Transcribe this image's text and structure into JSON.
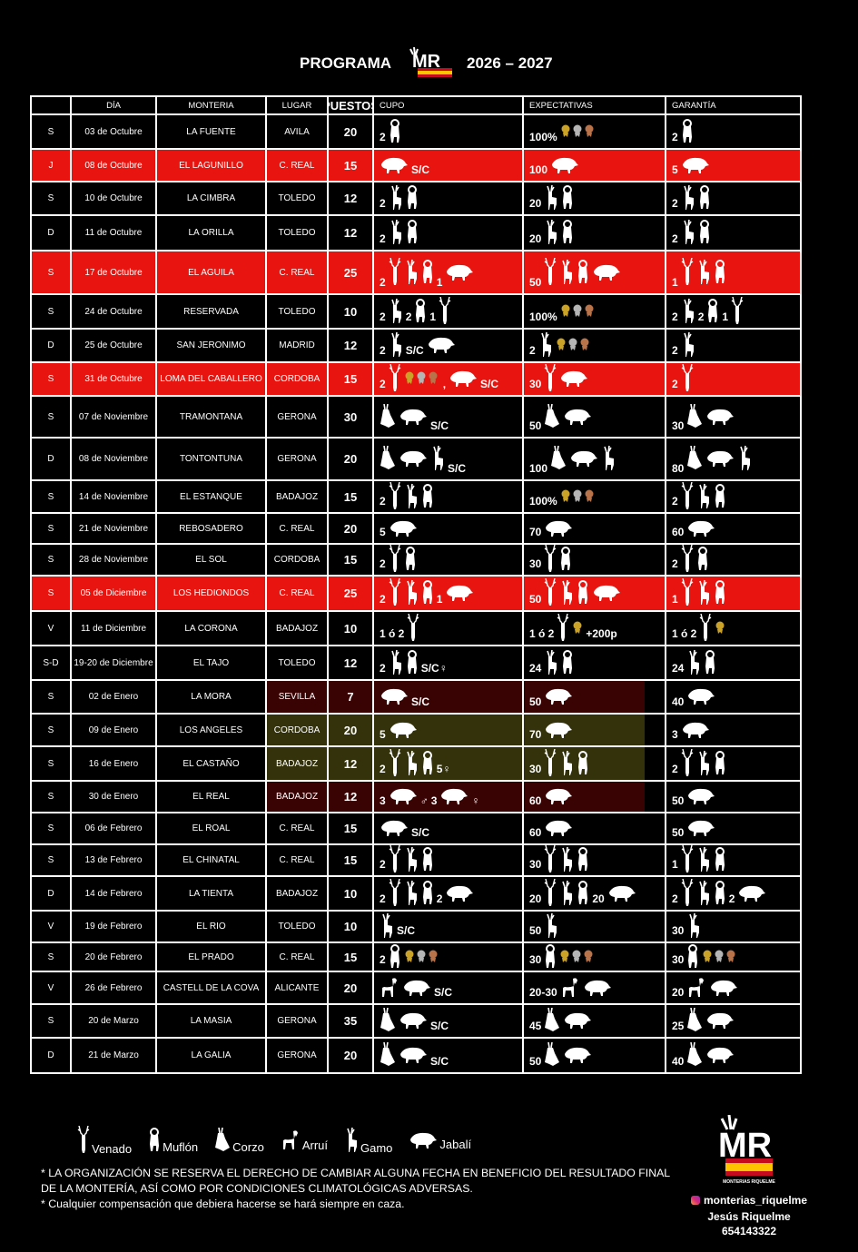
{
  "header": {
    "left": "PROGRAMA",
    "right": "2026 – 2027",
    "logo_text": "MR"
  },
  "columns": [
    "",
    "DÍA",
    "MONTERIA",
    "LUGAR",
    "PUESTOS",
    "CUPO",
    "EXPECTATIVAS",
    "GARANTÍA"
  ],
  "colors": {
    "highlight": "#e8140f",
    "gold": "#c9a227",
    "silver": "#b5b5b5",
    "bronze": "#b8734a"
  },
  "rows": [
    {
      "d": "S",
      "date": "03 de Octubre",
      "name": "LA FUENTE",
      "place": "AVILA",
      "puestos": "20",
      "red": false,
      "cupo": [
        "2",
        "@muflon"
      ],
      "exp": [
        "100%",
        "@medals"
      ],
      "gar": [
        "2",
        "@muflon"
      ]
    },
    {
      "d": "J",
      "date": "08 de Octubre",
      "name": "EL LAGUNILLO",
      "place": "C. REAL",
      "puestos": "15",
      "red": true,
      "cupo": [
        "@jabali",
        "S/C"
      ],
      "exp": [
        "100",
        "@jabali"
      ],
      "gar": [
        "5",
        "@jabali"
      ]
    },
    {
      "d": "S",
      "date": "10 de Octubre",
      "name": "LA CIMBRA",
      "place": "TOLEDO",
      "puestos": "12",
      "red": false,
      "cupo": [
        "2",
        "@gamo",
        "@muflon"
      ],
      "exp": [
        "20",
        "@gamo",
        "@muflon"
      ],
      "gar": [
        "2",
        "@gamo",
        "@muflon"
      ]
    },
    {
      "d": "D",
      "date": "11 de Octubre",
      "name": "LA ORILLA",
      "place": "TOLEDO",
      "puestos": "12",
      "red": false,
      "cupo": [
        "2",
        "@gamo",
        "@muflon"
      ],
      "exp": [
        "20",
        "@gamo",
        "@muflon"
      ],
      "gar": [
        "2",
        "@gamo",
        "@muflon"
      ]
    },
    {
      "d": "S",
      "date": "17 de Octubre",
      "name": "EL AGUILA",
      "place": "C. REAL",
      "puestos": "25",
      "red": true,
      "cupo": [
        "2",
        "@venado",
        "@gamo",
        "@muflon",
        "1",
        "@jabali"
      ],
      "exp": [
        "50",
        "@venado",
        "@gamo",
        "@muflon",
        "@jabali"
      ],
      "gar": [
        "1",
        "@venado",
        "@gamo",
        "@muflon"
      ]
    },
    {
      "d": "S",
      "date": "24 de Octubre",
      "name": "RESERVADA",
      "place": "TOLEDO",
      "puestos": "10",
      "red": false,
      "cupo": [
        "2",
        "@gamo",
        "2",
        "@muflon",
        "1",
        "@venado"
      ],
      "exp": [
        "100%",
        "@medals"
      ],
      "gar": [
        "2",
        "@gamo",
        "2",
        "@muflon",
        "1",
        "@venado"
      ]
    },
    {
      "d": "D",
      "date": "25 de Octubre",
      "name": "SAN JERONIMO",
      "place": "MADRID",
      "puestos": "12",
      "red": false,
      "cupo": [
        "2",
        "@gamo",
        "S/C",
        "@jabali"
      ],
      "exp": [
        "2",
        "@gamo",
        "@medals"
      ],
      "gar": [
        "2",
        "@gamo"
      ]
    },
    {
      "d": "S",
      "date": "31 de Octubre",
      "name": "LOMA DEL CABALLERO",
      "place": "CORDOBA",
      "puestos": "15",
      "red": true,
      "cupo": [
        "2",
        "@venado",
        "@medals",
        ",",
        "@jabali",
        "S/C"
      ],
      "exp": [
        "30",
        "@venado",
        "@jabali"
      ],
      "gar": [
        "2",
        "@venado"
      ]
    },
    {
      "d": "S",
      "date": "07 de Noviembre",
      "name": "TRAMONTANA",
      "place": "GERONA",
      "puestos": "30",
      "red": false,
      "cupo": [
        "@corzo",
        "@jabali",
        "S/C"
      ],
      "exp": [
        "50",
        "@corzo",
        "@jabali"
      ],
      "gar": [
        "30",
        "@corzo",
        "@jabali"
      ]
    },
    {
      "d": "D",
      "date": "08 de Noviembre",
      "name": "TONTONTUNA",
      "place": "GERONA",
      "puestos": "20",
      "red": false,
      "cupo": [
        "@corzo",
        "@jabali",
        "@gamo",
        "S/C"
      ],
      "exp": [
        "100",
        "@corzo",
        "@jabali",
        "@gamo"
      ],
      "gar": [
        "80",
        "@corzo",
        "@jabali",
        "@gamo"
      ]
    },
    {
      "d": "S",
      "date": "14 de Noviembre",
      "name": "EL ESTANQUE",
      "place": "BADAJOZ",
      "puestos": "15",
      "red": false,
      "cupo": [
        "2",
        "@venado",
        "@gamo",
        "@muflon"
      ],
      "exp": [
        "100%",
        "@medals"
      ],
      "gar": [
        "2",
        "@venado",
        "@gamo",
        "@muflon"
      ]
    },
    {
      "d": "S",
      "date": "21 de Noviembre",
      "name": "REBOSADERO",
      "place": "C. REAL",
      "puestos": "20",
      "red": false,
      "cupo": [
        "5",
        "@jabali"
      ],
      "exp": [
        "70",
        "@jabali"
      ],
      "gar": [
        "60",
        "@jabali"
      ]
    },
    {
      "d": "S",
      "date": "28 de Noviembre",
      "name": "EL SOL",
      "place": "CORDOBA",
      "puestos": "15",
      "red": false,
      "cupo": [
        "2",
        "@venado",
        "@muflon"
      ],
      "exp": [
        "30",
        "@venado",
        "@muflon"
      ],
      "gar": [
        "2",
        "@venado",
        "@muflon"
      ]
    },
    {
      "d": "S",
      "date": "05 de Diciembre",
      "name": "LOS HEDIONDOS",
      "place": "C. REAL",
      "puestos": "25",
      "red": true,
      "cupo": [
        "2",
        "@venado",
        "@gamo",
        "@muflon",
        "1",
        "@jabali"
      ],
      "exp": [
        "50",
        "@venado",
        "@gamo",
        "@muflon",
        "@jabali"
      ],
      "gar": [
        "1",
        "@venado",
        "@gamo",
        "@muflon"
      ]
    },
    {
      "d": "V",
      "date": "11 de Diciembre",
      "name": "LA CORONA",
      "place": "BADAJOZ",
      "puestos": "10",
      "red": false,
      "cupo": [
        "1 ó 2",
        "@venado"
      ],
      "exp": [
        "1 ó 2",
        "@venado",
        "@gold",
        "+200p"
      ],
      "gar": [
        "1 ó 2",
        "@venado",
        "@gold"
      ]
    },
    {
      "d": "S-D",
      "date": "19-20 de Diciembre",
      "name": "EL TAJO",
      "place": "TOLEDO",
      "puestos": "12",
      "red": false,
      "cupo": [
        "2",
        "@gamo",
        "@muflon",
        "S/C♀"
      ],
      "exp": [
        "24",
        "@gamo",
        "@muflon"
      ],
      "gar": [
        "24",
        "@gamo",
        "@muflon"
      ]
    },
    {
      "d": "S",
      "date": "02 de Enero",
      "name": "LA MORA",
      "place": "SEVILLA",
      "puestos": "7",
      "red": false,
      "cupo": [
        "@jabali",
        "S/C"
      ],
      "exp": [
        "50",
        "@jabali"
      ],
      "gar": [
        "40",
        "@jabali"
      ]
    },
    {
      "d": "S",
      "date": "09 de Enero",
      "name": "LOS ANGELES",
      "place": "CORDOBA",
      "puestos": "20",
      "red": false,
      "cupo": [
        "5",
        "@jabali"
      ],
      "exp": [
        "70",
        "@jabali"
      ],
      "gar": [
        "3",
        "@jabali"
      ]
    },
    {
      "d": "S",
      "date": "16 de Enero",
      "name": "EL CASTAÑO",
      "place": "BADAJOZ",
      "puestos": "12",
      "red": false,
      "cupo": [
        "2",
        "@venado",
        "@gamo",
        "@muflon",
        "5♀"
      ],
      "exp": [
        "30",
        "@venado",
        "@gamo",
        "@muflon"
      ],
      "gar": [
        "2",
        "@venado",
        "@gamo",
        "@muflon"
      ]
    },
    {
      "d": "S",
      "date": "30 de Enero",
      "name": "EL REAL",
      "place": "BADAJOZ",
      "puestos": "12",
      "red": false,
      "cupo": [
        "3",
        "@jabali",
        "♂",
        "3",
        "@jabali",
        "♀"
      ],
      "exp": [
        "60",
        "@jabali"
      ],
      "gar": [
        "50",
        "@jabali"
      ]
    },
    {
      "d": "S",
      "date": "06 de Febrero",
      "name": "EL ROAL",
      "place": "C. REAL",
      "puestos": "15",
      "red": false,
      "cupo": [
        "@jabali",
        "S/C"
      ],
      "exp": [
        "60",
        "@jabali"
      ],
      "gar": [
        "50",
        "@jabali"
      ]
    },
    {
      "d": "S",
      "date": "13 de Febrero",
      "name": "EL CHINATAL",
      "place": "C. REAL",
      "puestos": "15",
      "red": false,
      "cupo": [
        "2",
        "@venado",
        "@gamo",
        "@muflon"
      ],
      "exp": [
        "30",
        "@venado",
        "@gamo",
        "@muflon"
      ],
      "gar": [
        "1",
        "@venado",
        "@gamo",
        "@muflon"
      ]
    },
    {
      "d": "D",
      "date": "14 de Febrero",
      "name": "LA TIENTA",
      "place": "BADAJOZ",
      "puestos": "10",
      "red": false,
      "cupo": [
        "2",
        "@venado",
        "@gamo",
        "@muflon",
        "2",
        "@jabali"
      ],
      "exp": [
        "20",
        "@venado",
        "@gamo",
        "@muflon",
        "20",
        "@jabali"
      ],
      "gar": [
        "2",
        "@venado",
        "@gamo",
        "@muflon",
        "2",
        "@jabali"
      ]
    },
    {
      "d": "V",
      "date": "19 de Febrero",
      "name": "EL RIO",
      "place": "TOLEDO",
      "puestos": "10",
      "red": false,
      "cupo": [
        "@gamo",
        "S/C"
      ],
      "exp": [
        "50",
        "@gamo"
      ],
      "gar": [
        "30",
        "@gamo"
      ]
    },
    {
      "d": "S",
      "date": "20 de Febrero",
      "name": "EL PRADO",
      "place": "C. REAL",
      "puestos": "15",
      "red": false,
      "cupo": [
        "2",
        "@muflon",
        "@medals"
      ],
      "exp": [
        "30",
        "@muflon",
        "@medals"
      ],
      "gar": [
        "30",
        "@muflon",
        "@medals"
      ]
    },
    {
      "d": "V",
      "date": "26 de Febrero",
      "name": "CASTELL DE LA COVA",
      "place": "ALICANTE",
      "puestos": "20",
      "red": false,
      "cupo": [
        "@arrui",
        "@jabali",
        "S/C"
      ],
      "exp": [
        "20-30",
        "@arrui",
        "@jabali"
      ],
      "gar": [
        "20",
        "@arrui",
        "@jabali"
      ]
    },
    {
      "d": "S",
      "date": "20 de Marzo",
      "name": "LA MASIA",
      "place": "GERONA",
      "puestos": "35",
      "red": false,
      "cupo": [
        "@corzo",
        "@jabali",
        "S/C"
      ],
      "exp": [
        "45",
        "@corzo",
        "@jabali"
      ],
      "gar": [
        "25",
        "@corzo",
        "@jabali"
      ]
    },
    {
      "d": "D",
      "date": "21 de Marzo",
      "name": "LA GALIA",
      "place": "GERONA",
      "puestos": "20",
      "red": false,
      "cupo": [
        "@corzo",
        "@jabali",
        "S/C"
      ],
      "exp": [
        "50",
        "@corzo",
        "@jabali"
      ],
      "gar": [
        "40",
        "@corzo",
        "@jabali"
      ]
    }
  ],
  "legend": [
    {
      "icon": "venado",
      "label": "Venado"
    },
    {
      "icon": "muflon",
      "label": "Muflón"
    },
    {
      "icon": "corzo",
      "label": "Corzo"
    },
    {
      "icon": "arrui",
      "label": "Arruí"
    },
    {
      "icon": "gamo",
      "label": "Gamo"
    },
    {
      "icon": "jabali",
      "label": "Jabalí"
    }
  ],
  "notes": [
    "* LA ORGANIZACIÓN SE RESERVA EL DERECHO DE CAMBIAR ALGUNA FECHA EN BENEFICIO DEL RESULTADO FINAL DE LA MONTERÍA, ASÍ COMO POR CONDICIONES CLIMATOLÓGICAS ADVERSAS.",
    "* Cualquier compensación que debiera hacerse se hará siempre en caza."
  ],
  "brand": {
    "logo_text": "MR",
    "logo_caption": "MONTERIAS RIQUELME",
    "instagram": "monterias_riquelme",
    "name": "Jesús Riquelme",
    "phone": "654143322"
  }
}
